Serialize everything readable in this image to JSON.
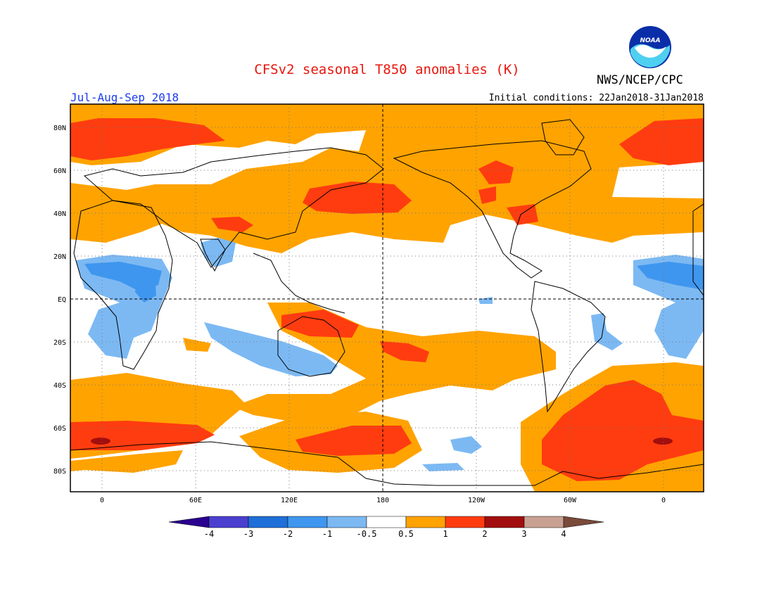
{
  "title": "CFSv2 seasonal T850 anomalies (K)",
  "agency": "NWS/NCEP/CPC",
  "logo_text": "NOAA",
  "period": "Jul-Aug-Sep 2018",
  "initial_conditions": "Initial conditions: 22Jan2018-31Jan2018",
  "map": {
    "projection": "cylindrical-equidistant",
    "center_longitude": 180,
    "lat_labels": [
      "80N",
      "60N",
      "40N",
      "20N",
      "EQ",
      "20S",
      "40S",
      "60S",
      "80S"
    ],
    "lon_labels": [
      "0",
      "60E",
      "120E",
      "180",
      "120W",
      "60W",
      "0"
    ],
    "grid": "dotted",
    "reference_lines": [
      "Equator (dashed)",
      "180 meridian (dashed)"
    ],
    "dominant_pattern": "widespread positive anomalies (0.5 to 2 K) over much of the globe; negative anomalies (-0.5 to -2 K) over North Africa, tropical Atlantic, southern Indian Ocean, and near Antarctica"
  },
  "colorbar": {
    "labels": [
      "-4",
      "-3",
      "-2",
      "-1",
      "-0.5",
      "0.5",
      "1",
      "2",
      "3",
      "4"
    ],
    "bins": [
      {
        "range": "< -4",
        "color": "#2a008e"
      },
      {
        "range": "-4 to -3",
        "color": "#4b3fd0"
      },
      {
        "range": "-3 to -2",
        "color": "#1f6fd8"
      },
      {
        "range": "-2 to -1",
        "color": "#3f96ee"
      },
      {
        "range": "-1 to -0.5",
        "color": "#7cb9f3"
      },
      {
        "range": "-0.5 to 0.5",
        "color": "#ffffff"
      },
      {
        "range": "0.5 to 1",
        "color": "#ffa300"
      },
      {
        "range": "1 to 2",
        "color": "#ff3c10"
      },
      {
        "range": "2 to 3",
        "color": "#a20e0e"
      },
      {
        "range": "3 to 4",
        "color": "#c9a193"
      },
      {
        "range": "> 4",
        "color": "#7a4a3a"
      }
    ]
  }
}
